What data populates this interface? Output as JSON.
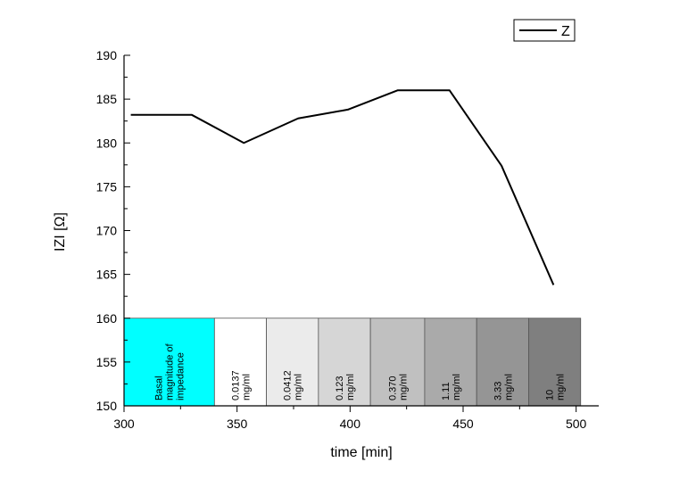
{
  "chart_data": {
    "type": "line",
    "xlabel": "time [min]",
    "ylabel": "IZI [Ω]",
    "xlim": [
      300,
      510
    ],
    "ylim": [
      150,
      190
    ],
    "xticks": [
      300,
      350,
      400,
      450,
      500
    ],
    "yticks": [
      150,
      155,
      160,
      165,
      170,
      175,
      180,
      185,
      190
    ],
    "series": [
      {
        "name": "Z",
        "color": "#000000",
        "x": [
          303,
          330,
          353,
          377,
          399,
          421,
          444,
          467,
          490
        ],
        "y": [
          183.2,
          183.2,
          180.0,
          182.8,
          183.8,
          186.0,
          186.0,
          177.4,
          163.8
        ]
      }
    ],
    "legend": {
      "position": "top-right",
      "entries": [
        "Z"
      ]
    },
    "concentration_boxes": [
      {
        "x_start": 300,
        "x_end": 340,
        "lines": [
          "Basal",
          "magnitude of",
          "impedance"
        ],
        "color": "#00ffff"
      },
      {
        "x_start": 340,
        "x_end": 363,
        "lines": [
          "0.0137",
          "mg/ml"
        ],
        "color": "#ffffff"
      },
      {
        "x_start": 363,
        "x_end": 386,
        "lines": [
          "0.0412",
          "mg/ml"
        ],
        "color": "#ebebeb"
      },
      {
        "x_start": 386,
        "x_end": 409,
        "lines": [
          "0.123",
          "mg/ml"
        ],
        "color": "#d6d6d6"
      },
      {
        "x_start": 409,
        "x_end": 433,
        "lines": [
          "0.370",
          "mg/ml"
        ],
        "color": "#c0c0c0"
      },
      {
        "x_start": 433,
        "x_end": 456,
        "lines": [
          "1.11",
          "mg/ml"
        ],
        "color": "#aaaaaa"
      },
      {
        "x_start": 456,
        "x_end": 479,
        "lines": [
          "3.33",
          "mg/ml"
        ],
        "color": "#959595"
      },
      {
        "x_start": 479,
        "x_end": 502,
        "lines": [
          "10",
          "mg/ml"
        ],
        "color": "#7f7f7f"
      }
    ]
  }
}
